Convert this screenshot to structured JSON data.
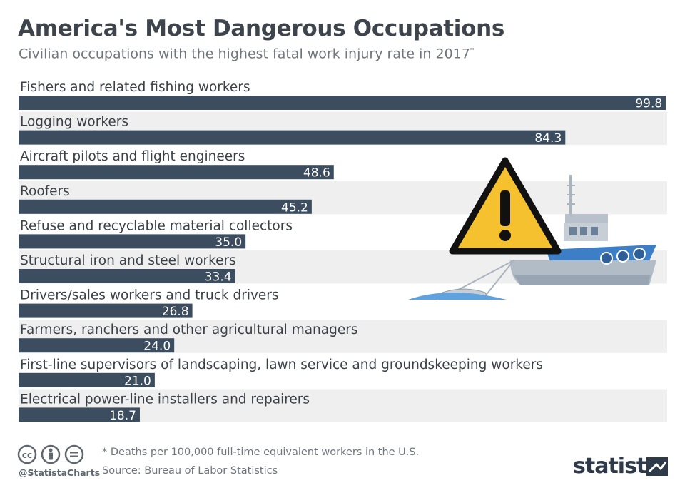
{
  "title": "America's Most Dangerous Occupations",
  "subtitle": "Civilian occupations with the highest fatal work injury rate in 2017",
  "subtitle_marker": "*",
  "footnote": "* Deaths per 100,000 full-time equivalent workers in the U.S.",
  "source": "Source: Bureau of Labor Statistics",
  "handle": "@StatistaCharts",
  "brand": "statista",
  "colors": {
    "bar": "#3c4d60",
    "band": "#efefef",
    "label": "#ffffff",
    "warning": "#f5c12e"
  },
  "icons": [
    "cc-icon",
    "person-icon",
    "equals-icon",
    "warning-icon",
    "fishing-boat-icon",
    "statista-logo-icon"
  ],
  "chart_data": {
    "type": "bar",
    "orientation": "horizontal",
    "categories": [
      "Fishers and related fishing workers",
      "Logging workers",
      "Aircraft pilots and flight engineers",
      "Roofers",
      "Refuse and recyclable material collectors",
      "Structural iron and steel workers",
      "Drivers/sales workers and truck drivers",
      "Farmers, ranchers and other agricultural managers",
      "First-line supervisors of landscaping, lawn service and groundskeeping workers",
      "Electrical power-line installers and repairers"
    ],
    "values": [
      99.8,
      84.3,
      48.6,
      45.2,
      35.0,
      33.4,
      26.8,
      24.0,
      21.0,
      18.7
    ],
    "value_labels": [
      "99.8",
      "84.3",
      "48.6",
      "45.2",
      "35.0",
      "33.4",
      "26.8",
      "24.0",
      "21.0",
      "18.7"
    ],
    "xlim": [
      0,
      100
    ],
    "grid": false,
    "legend": "none"
  }
}
